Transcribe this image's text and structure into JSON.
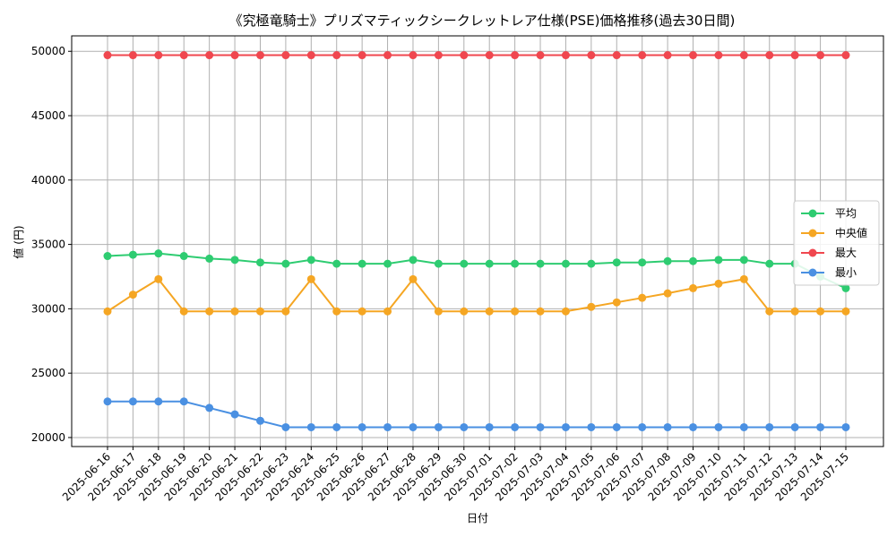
{
  "chart_data": {
    "type": "line",
    "title": "《究極竜騎士》プリズマティックシークレットレア仕様(PSE)価格推移(過去30日間)",
    "xlabel": "日付",
    "ylabel": "値 (円)",
    "ylim": [
      19300,
      51200
    ],
    "yticks": [
      20000,
      25000,
      30000,
      35000,
      40000,
      45000,
      50000
    ],
    "ytick_labels": [
      "20000",
      "25000",
      "30000",
      "35000",
      "40000",
      "45000",
      "50000"
    ],
    "grid": true,
    "legend_position": "center-right",
    "categories": [
      "2025-06-16",
      "2025-06-17",
      "2025-06-18",
      "2025-06-19",
      "2025-06-20",
      "2025-06-21",
      "2025-06-22",
      "2025-06-23",
      "2025-06-24",
      "2025-06-25",
      "2025-06-26",
      "2025-06-27",
      "2025-06-28",
      "2025-06-29",
      "2025-06-30",
      "2025-07-01",
      "2025-07-02",
      "2025-07-03",
      "2025-07-04",
      "2025-07-05",
      "2025-07-06",
      "2025-07-07",
      "2025-07-08",
      "2025-07-09",
      "2025-07-10",
      "2025-07-11",
      "2025-07-12",
      "2025-07-13",
      "2025-07-14",
      "2025-07-15"
    ],
    "series": [
      {
        "name": "平均",
        "color": "#2ecc71",
        "values": [
          34100,
          34200,
          34300,
          34100,
          33900,
          33800,
          33600,
          33500,
          33800,
          33500,
          33500,
          33500,
          33800,
          33500,
          33500,
          33500,
          33500,
          33500,
          33500,
          33500,
          33600,
          33600,
          33700,
          33700,
          33800,
          33800,
          33500,
          33500,
          32500,
          31600
        ]
      },
      {
        "name": "中央値",
        "color": "#f5a623",
        "values": [
          29800,
          31100,
          32300,
          29800,
          29800,
          29800,
          29800,
          29800,
          32300,
          29800,
          29800,
          29800,
          32300,
          29800,
          29800,
          29800,
          29800,
          29800,
          29800,
          30150,
          30500,
          30850,
          31200,
          31600,
          31950,
          32300,
          29800,
          29800,
          29800,
          29800
        ]
      },
      {
        "name": "最大",
        "color": "#f0474f",
        "values": [
          49700,
          49700,
          49700,
          49700,
          49700,
          49700,
          49700,
          49700,
          49700,
          49700,
          49700,
          49700,
          49700,
          49700,
          49700,
          49700,
          49700,
          49700,
          49700,
          49700,
          49700,
          49700,
          49700,
          49700,
          49700,
          49700,
          49700,
          49700,
          49700,
          49700
        ]
      },
      {
        "name": "最小",
        "color": "#4a90e2",
        "values": [
          22800,
          22800,
          22800,
          22800,
          22300,
          21800,
          21300,
          20800,
          20800,
          20800,
          20800,
          20800,
          20800,
          20800,
          20800,
          20800,
          20800,
          20800,
          20800,
          20800,
          20800,
          20800,
          20800,
          20800,
          20800,
          20800,
          20800,
          20800,
          20800,
          20800
        ]
      }
    ]
  }
}
